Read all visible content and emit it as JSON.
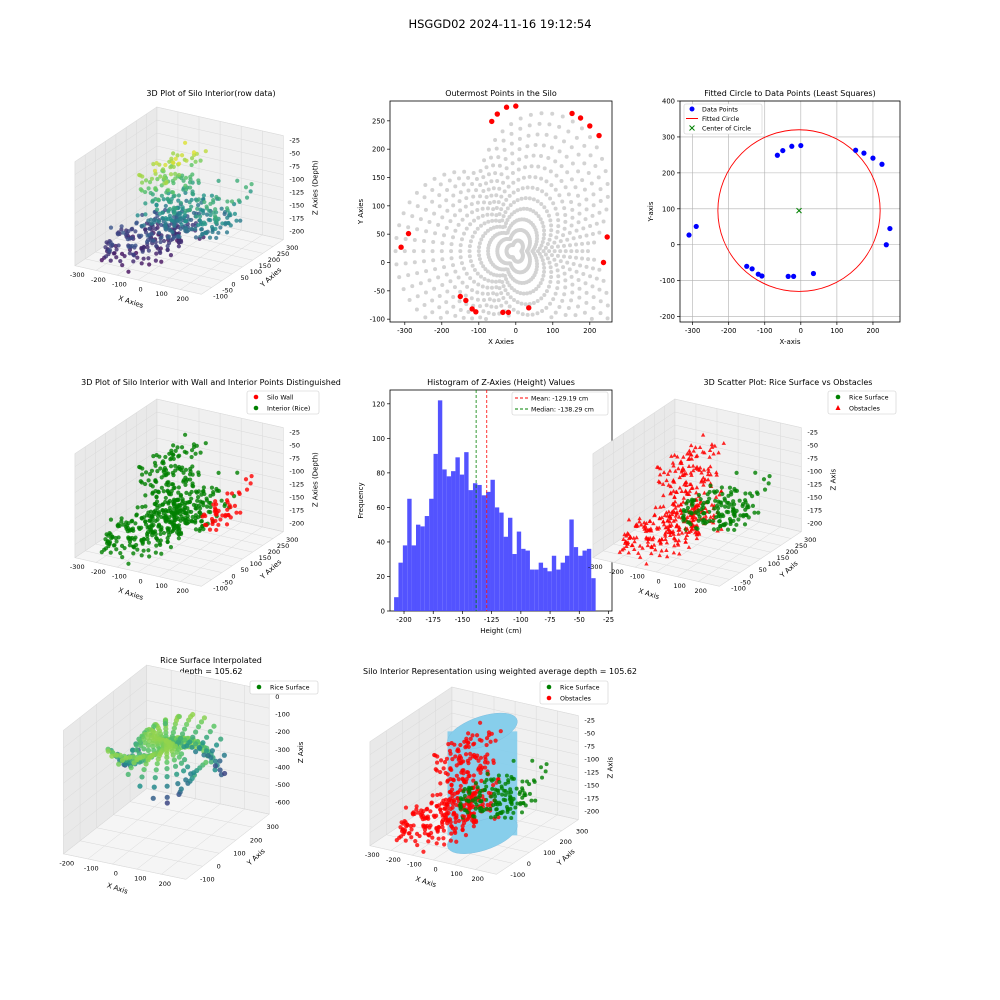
{
  "figure_title": "HSGGD02 2024-11-16 19:12:54",
  "colors": {
    "red": "#ff0000",
    "green": "#008000",
    "blue": "#0000ff",
    "grey_points": "#d3d3d3",
    "hist": "#4a4aff",
    "cyl": "#87ceeb",
    "pane": "#f2f2f2",
    "grid": "#dcdcdc"
  },
  "chart_data": [
    {
      "id": "p1",
      "type": "scatter3d",
      "title": "3D Plot of Silo Interior(row data)",
      "xlabel": "X Axies",
      "ylabel": "Y Axies",
      "zlabel": "Z Axies (Depth)",
      "xticks": [
        "-300",
        "-200",
        "-100",
        "0",
        "100",
        "200"
      ],
      "yticks": [
        "-100",
        "-50",
        "0",
        "50",
        "100",
        "150",
        "200",
        "250",
        "300"
      ],
      "zticks": [
        "-25",
        "-50",
        "-75",
        "-100",
        "-125",
        "-150",
        "-175",
        "-200"
      ],
      "colormap": "viridis"
    },
    {
      "id": "p2",
      "type": "scatter",
      "title": "Outermost Points in the Silo",
      "xlabel": "X Axies",
      "ylabel": "Y Axies",
      "xlim": [
        -340,
        260
      ],
      "ylim": [
        -105,
        285
      ],
      "xticks": [
        -300,
        -200,
        -100,
        0,
        100,
        200
      ],
      "yticks": [
        -100,
        -50,
        0,
        50,
        100,
        150,
        200,
        250
      ],
      "outermost_points": [
        [
          -310,
          27
        ],
        [
          -290,
          51
        ],
        [
          -150,
          -60
        ],
        [
          -135,
          -67
        ],
        [
          -118,
          -82
        ],
        [
          -108,
          -87
        ],
        [
          -35,
          -88
        ],
        [
          -20,
          -88
        ],
        [
          35,
          -80
        ],
        [
          -65,
          249
        ],
        [
          -50,
          262
        ],
        [
          -25,
          274
        ],
        [
          0,
          276
        ],
        [
          152,
          263
        ],
        [
          175,
          255
        ],
        [
          200,
          241
        ],
        [
          225,
          224
        ],
        [
          247,
          45
        ],
        [
          237,
          0
        ]
      ]
    },
    {
      "id": "p3",
      "type": "scatter",
      "title": "Fitted Circle to Data Points (Least Squares)",
      "xlabel": "X-axis",
      "ylabel": "Y-axis",
      "xlim": [
        -335,
        275
      ],
      "ylim": [
        -215,
        400
      ],
      "xticks": [
        -300,
        -200,
        -100,
        0,
        100,
        200
      ],
      "yticks": [
        -200,
        -100,
        0,
        100,
        200,
        300,
        400
      ],
      "grid": true,
      "legend": [
        "Data Points",
        "Fitted Circle",
        "Center of Circle"
      ],
      "legend_position": "upper-left",
      "data_points": [
        [
          -310,
          27
        ],
        [
          -290,
          51
        ],
        [
          -150,
          -60
        ],
        [
          -135,
          -67
        ],
        [
          -118,
          -82
        ],
        [
          -108,
          -87
        ],
        [
          -35,
          -88
        ],
        [
          -20,
          -88
        ],
        [
          35,
          -80
        ],
        [
          -65,
          249
        ],
        [
          -50,
          262
        ],
        [
          -25,
          274
        ],
        [
          0,
          276
        ],
        [
          152,
          263
        ],
        [
          175,
          255
        ],
        [
          200,
          241
        ],
        [
          225,
          224
        ],
        [
          247,
          45
        ],
        [
          237,
          0
        ]
      ],
      "circle_center": [
        -5,
        95
      ],
      "circle_radius": 225
    },
    {
      "id": "p4",
      "type": "scatter3d",
      "title": "3D Plot of Silo Interior with Wall and Interior Points Distinguished",
      "xlabel": "X Axies",
      "ylabel": "Y Axies",
      "zlabel": "Z Axies (Depth)",
      "xticks": [
        "-300",
        "-200",
        "-100",
        "0",
        "100",
        "200"
      ],
      "yticks": [
        "-100",
        "-50",
        "0",
        "50",
        "100",
        "150",
        "200",
        "250",
        "300"
      ],
      "zticks": [
        "-25",
        "-50",
        "-75",
        "-100",
        "-125",
        "-150",
        "-175",
        "-200"
      ],
      "legend": [
        "Silo Wall",
        "Interior (Rice)"
      ]
    },
    {
      "id": "p5",
      "type": "bar",
      "title": "Histogram of Z-Axies (Height) Values",
      "xlabel": "Height (cm)",
      "ylabel": "Frequency",
      "xlim": [
        -212,
        -22
      ],
      "ylim": [
        0,
        128
      ],
      "xticks": [
        -200,
        -175,
        -150,
        -125,
        -100,
        -75,
        -50,
        -25
      ],
      "yticks": [
        0,
        20,
        40,
        60,
        80,
        100,
        120
      ],
      "bin_start": -208.5,
      "bin_width": 3.75,
      "values": [
        8,
        28,
        38,
        65,
        38,
        50,
        49,
        55,
        65,
        91,
        122,
        82,
        78,
        81,
        89,
        79,
        92,
        70,
        74,
        73,
        67,
        69,
        76,
        60,
        57,
        43,
        54,
        33,
        46,
        36,
        35,
        24,
        24,
        28,
        25,
        23,
        32,
        24,
        28,
        32,
        53,
        37,
        32,
        35,
        36,
        19
      ],
      "mean": -129.19,
      "median": -138.29,
      "legend": [
        "Mean: -129.19 cm",
        "Median: -138.29 cm"
      ]
    },
    {
      "id": "p6",
      "type": "scatter3d",
      "title": "3D Scatter Plot: Rice Surface vs Obstacles",
      "xlabel": "X Axis",
      "ylabel": "Y Axis",
      "zlabel": "Z Axis",
      "xticks": [
        "-300",
        "-200",
        "-100",
        "0",
        "100",
        "200"
      ],
      "yticks": [
        "-100",
        "-50",
        "0",
        "50",
        "100",
        "150",
        "200",
        "250",
        "300"
      ],
      "zticks": [
        "-25",
        "-50",
        "-75",
        "-100",
        "-125",
        "-150",
        "-175",
        "-200"
      ],
      "legend": [
        "Rice Surface",
        "Obstacles"
      ]
    },
    {
      "id": "p7",
      "type": "surface3d",
      "title": "Rice Surface Interpolated",
      "subtitle": "depth = 105.62",
      "xlabel": "X Axis",
      "ylabel": "Y Axis",
      "zlabel": "Z Axis",
      "xticks": [
        "-200",
        "-100",
        "0",
        "100",
        "200"
      ],
      "yticks": [
        "-100",
        "0",
        "100",
        "200",
        "300"
      ],
      "zticks": [
        "0",
        "-100",
        "-200",
        "-300",
        "-400",
        "-500",
        "-600"
      ],
      "legend": [
        "Rice Surface"
      ]
    },
    {
      "id": "p8",
      "type": "scatter3d",
      "title": "Silo Interior Representation using weighted average depth = 105.62",
      "xlabel": "X Axis",
      "ylabel": "Y Axis",
      "zlabel": "Z Axis",
      "xticks": [
        "-300",
        "-200",
        "-100",
        "0",
        "100",
        "200"
      ],
      "yticks": [
        "-100",
        "0",
        "100",
        "200",
        "300"
      ],
      "zticks": [
        "-25",
        "-50",
        "-75",
        "-100",
        "-125",
        "-150",
        "-175",
        "-200"
      ],
      "legend": [
        "Rice Surface",
        "Obstacles"
      ]
    }
  ]
}
